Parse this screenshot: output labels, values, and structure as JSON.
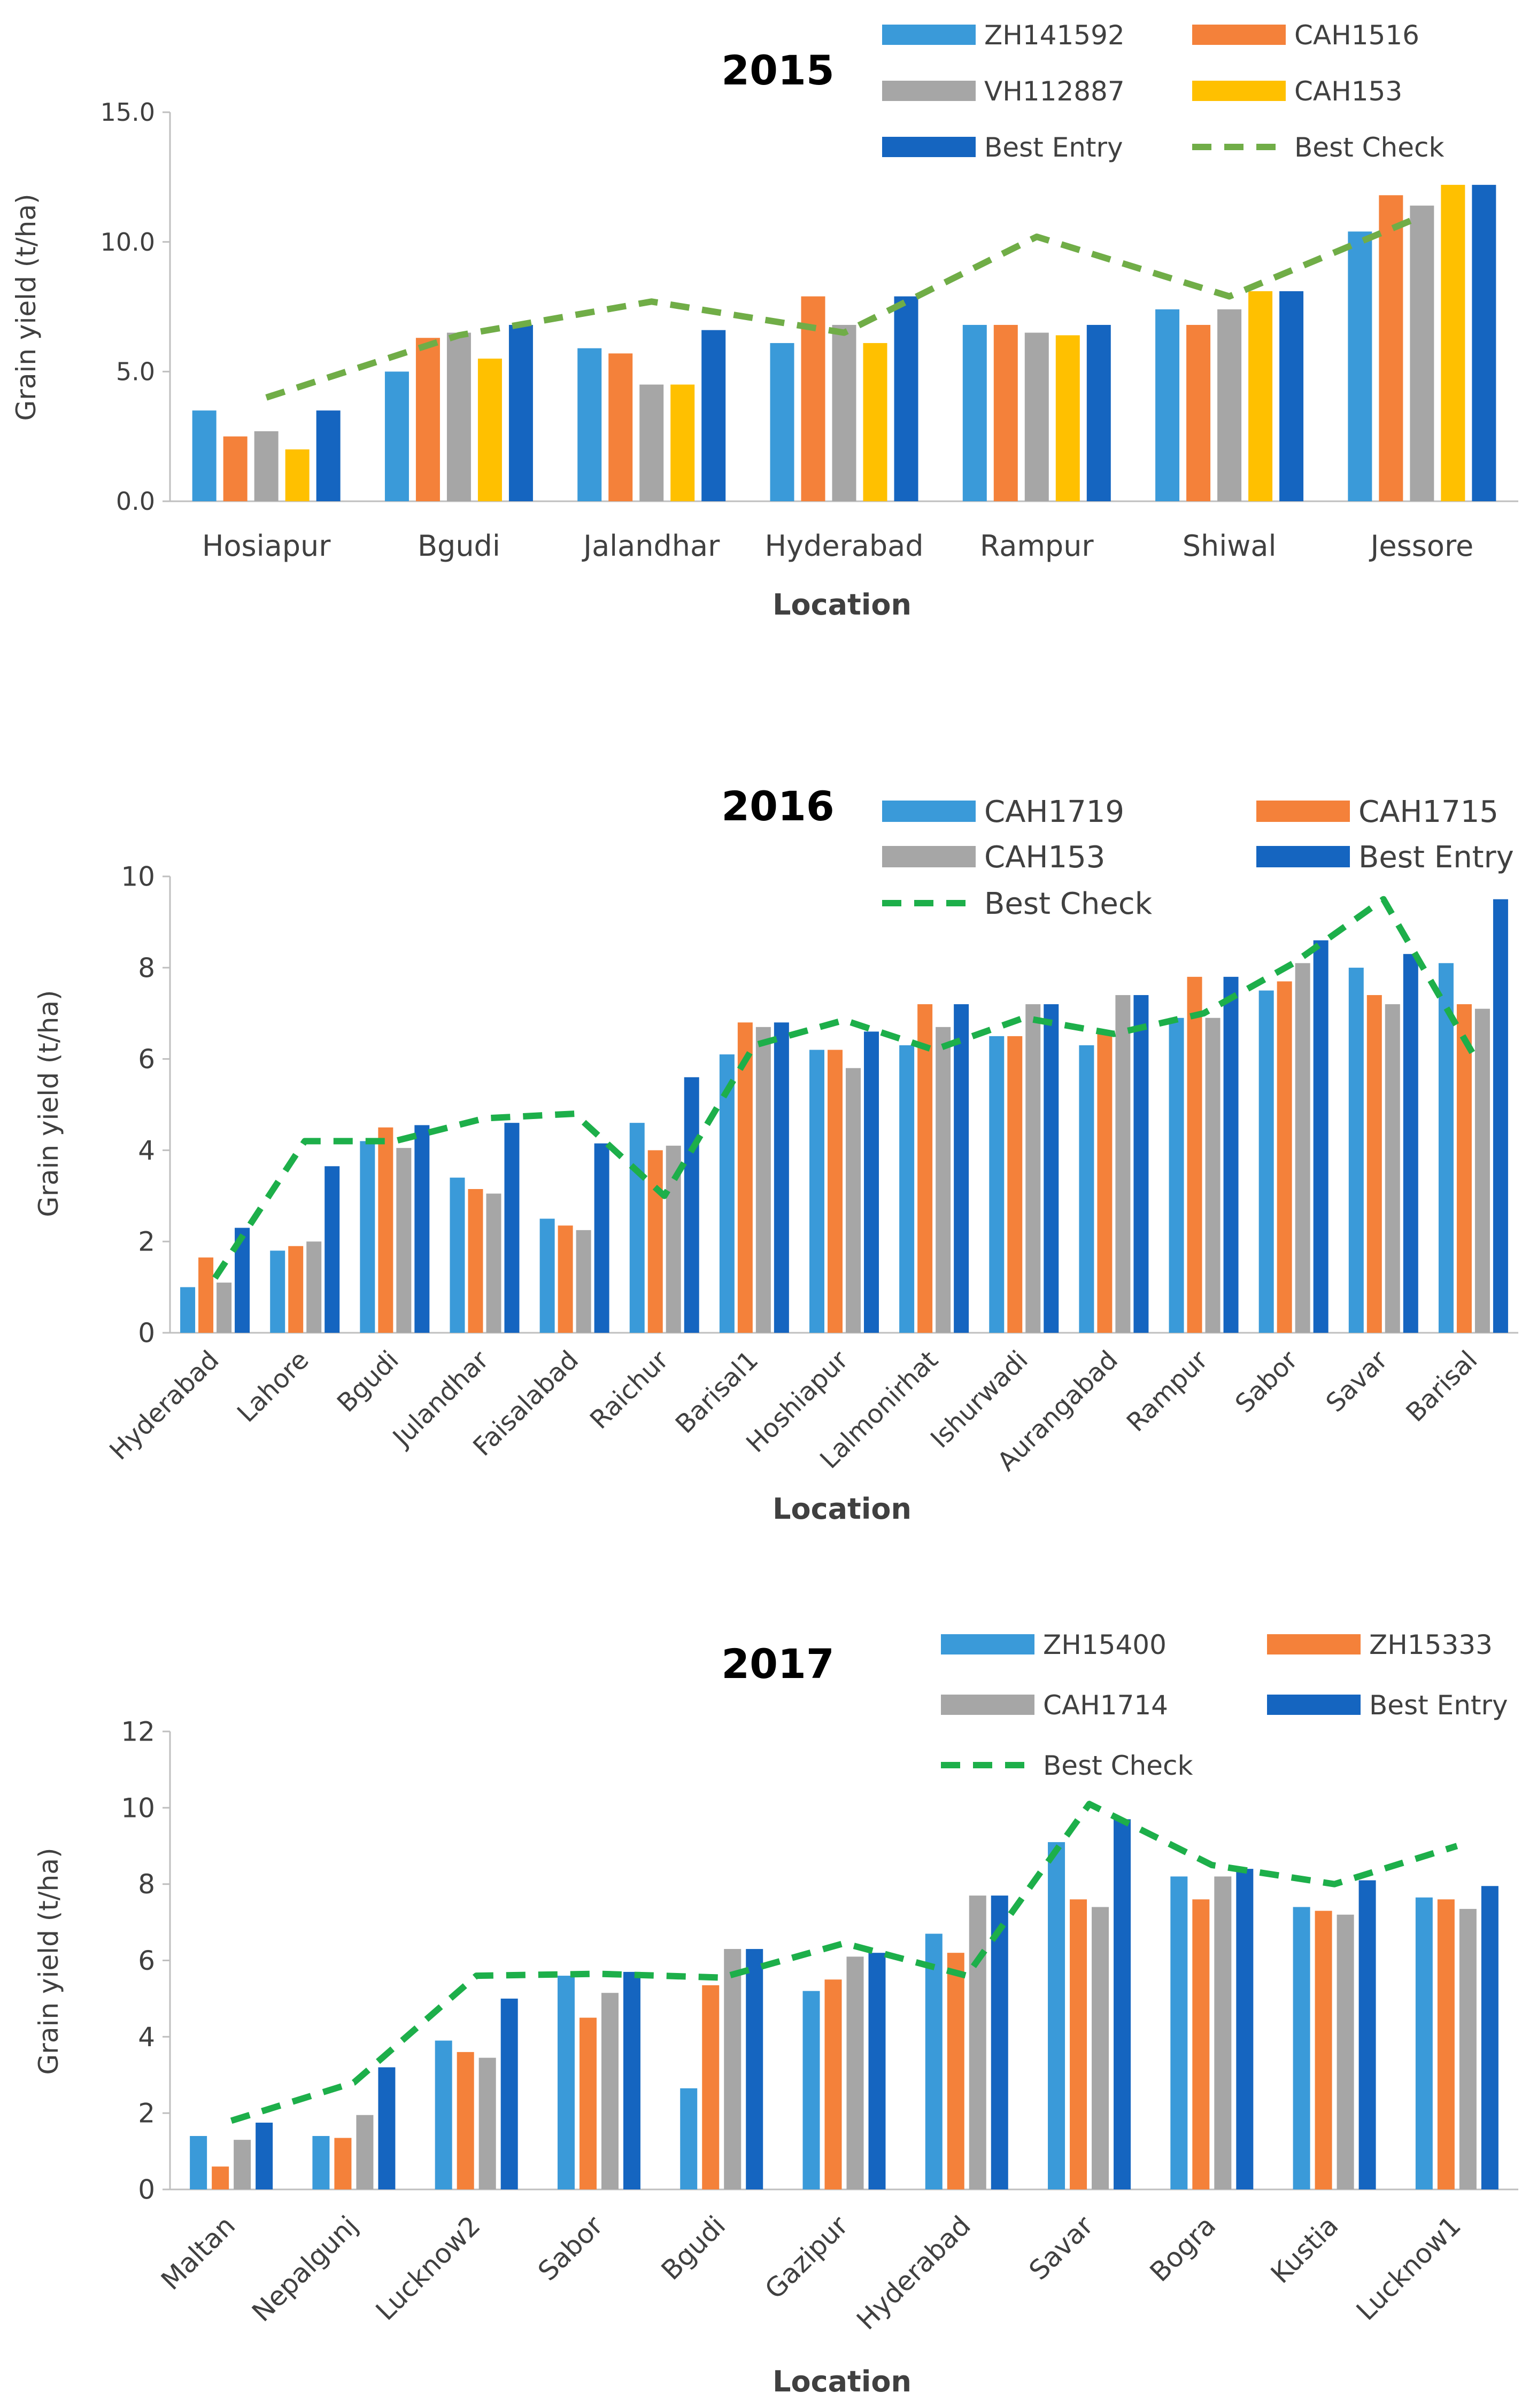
{
  "colors": {
    "ZH141592": "#3A9AD9",
    "CAH1516": "#F4813A",
    "VH112887": "#A6A6A6",
    "CAH153": "#FFC000",
    "CAH1719": "#3A9AD9",
    "CAH1715": "#F4813A",
    "ZH15400": "#3A9AD9",
    "ZH15333": "#F4813A",
    "CAH1714": "#A6A6A6",
    "best_entry": "#1565C0",
    "best_check_2015": "#70AD47",
    "best_check": "#1DAF4A",
    "axis": "#BFBFBF"
  },
  "chart_data": [
    {
      "type": "bar",
      "title": "2015",
      "xlabel": "Location",
      "ylabel": "Grain yield (t/ha)",
      "ylim": [
        0,
        15
      ],
      "yticks": [
        0,
        5,
        10,
        15
      ],
      "ytick_labels": [
        "0.0",
        "5.0",
        "10.0",
        "15.0"
      ],
      "categories": [
        "Hosiapur",
        "Bgudi",
        "Jalandhar",
        "Hyderabad",
        "Rampur",
        "Shiwal",
        "Jessore"
      ],
      "series": [
        {
          "name": "ZH141592",
          "color": "#3A9AD9",
          "values": [
            3.5,
            5.0,
            5.9,
            6.1,
            6.8,
            7.4,
            10.4
          ]
        },
        {
          "name": "CAH1516",
          "color": "#F4813A",
          "values": [
            2.5,
            6.3,
            5.7,
            7.9,
            6.8,
            6.8,
            11.8
          ]
        },
        {
          "name": "VH112887",
          "color": "#A6A6A6",
          "values": [
            2.7,
            6.5,
            4.5,
            6.8,
            6.5,
            7.4,
            11.4
          ]
        },
        {
          "name": "CAH153",
          "color": "#FFC000",
          "values": [
            2.0,
            5.5,
            4.5,
            6.1,
            6.4,
            8.1,
            12.2
          ]
        },
        {
          "name": "Best Entry",
          "color": "#1565C0",
          "values": [
            3.5,
            6.8,
            6.6,
            7.9,
            6.8,
            8.1,
            12.2
          ]
        }
      ],
      "line": {
        "name": "Best Check",
        "color": "#70AD47",
        "values": [
          4.0,
          6.4,
          7.7,
          6.5,
          10.2,
          7.9,
          11.0
        ]
      },
      "legend_entries": [
        "ZH141592",
        "CAH1516",
        "VH112887",
        "CAH153",
        "Best Entry",
        "Best Check"
      ]
    },
    {
      "type": "bar",
      "title": "2016",
      "xlabel": "Location",
      "ylabel": "Grain yield (t/ha)",
      "ylim": [
        0,
        10
      ],
      "yticks": [
        0,
        2,
        4,
        6,
        8,
        10
      ],
      "ytick_labels": [
        "0",
        "2",
        "4",
        "6",
        "8",
        "10"
      ],
      "categories": [
        "Hyderabad",
        "Lahore",
        "Bgudi",
        "Julandhar",
        "Faisalabad",
        "Raichur",
        "Barisal1",
        "Hoshiapur",
        "Lalmonirhat",
        "Ishurwadi",
        "Aurangabad",
        "Rampur",
        "Sabor",
        "Savar",
        "Barisal"
      ],
      "series": [
        {
          "name": "CAH1719",
          "color": "#3A9AD9",
          "values": [
            1.0,
            1.8,
            4.2,
            3.4,
            2.5,
            4.6,
            6.1,
            6.2,
            6.3,
            6.5,
            6.3,
            6.9,
            7.5,
            8.0,
            8.1
          ]
        },
        {
          "name": "CAH1715",
          "color": "#F4813A",
          "values": [
            1.65,
            1.9,
            4.5,
            3.15,
            2.35,
            4.0,
            6.8,
            6.2,
            7.2,
            6.5,
            6.6,
            7.8,
            7.7,
            7.4,
            7.2
          ]
        },
        {
          "name": "CAH153",
          "color": "#A6A6A6",
          "values": [
            1.1,
            2.0,
            4.05,
            3.05,
            2.25,
            4.1,
            6.7,
            5.8,
            6.7,
            7.2,
            7.4,
            6.9,
            8.1,
            7.2,
            7.1
          ]
        },
        {
          "name": "Best Entry",
          "color": "#1565C0",
          "values": [
            2.3,
            3.65,
            4.55,
            4.6,
            4.15,
            5.6,
            6.8,
            6.6,
            7.2,
            7.2,
            7.4,
            7.8,
            8.6,
            8.3,
            9.5
          ]
        }
      ],
      "line": {
        "name": "Best Check",
        "color": "#1DAF4A",
        "values": [
          1.2,
          4.2,
          4.2,
          4.7,
          4.8,
          3.0,
          6.3,
          6.85,
          6.2,
          6.9,
          6.55,
          7.0,
          8.1,
          9.5,
          6.1
        ]
      },
      "legend_entries": [
        "CAH1719",
        "CAH1715",
        "CAH153",
        "Best Entry",
        "Best Check"
      ]
    },
    {
      "type": "bar",
      "title": "2017",
      "xlabel": "Location",
      "ylabel": "Grain yield (t/ha)",
      "ylim": [
        0,
        12
      ],
      "yticks": [
        0,
        2,
        4,
        6,
        8,
        10,
        12
      ],
      "ytick_labels": [
        "0",
        "2",
        "4",
        "6",
        "8",
        "10",
        "12"
      ],
      "categories": [
        "Maltan",
        "Nepalgunj",
        "Lucknow2",
        "Sabor",
        "Bgudi",
        "Gazipur",
        "Hyderabad",
        "Savar",
        "Bogra",
        "Kustia",
        "Lucknow1"
      ],
      "series": [
        {
          "name": "ZH15400",
          "color": "#3A9AD9",
          "values": [
            1.4,
            1.4,
            3.9,
            5.6,
            2.65,
            5.2,
            6.7,
            9.1,
            8.2,
            7.4,
            7.65
          ]
        },
        {
          "name": "ZH15333",
          "color": "#F4813A",
          "values": [
            0.6,
            1.35,
            3.6,
            4.5,
            5.35,
            5.5,
            6.2,
            7.6,
            7.6,
            7.3,
            7.6
          ]
        },
        {
          "name": "CAH1714",
          "color": "#A6A6A6",
          "values": [
            1.3,
            1.95,
            3.45,
            5.15,
            6.3,
            6.1,
            7.7,
            7.4,
            8.2,
            7.2,
            7.35
          ]
        },
        {
          "name": "Best Entry",
          "color": "#1565C0",
          "values": [
            1.75,
            3.2,
            5.0,
            5.7,
            6.3,
            6.2,
            7.7,
            9.7,
            8.4,
            8.1,
            7.95
          ]
        }
      ],
      "line": {
        "name": "Best Check",
        "color": "#1DAF4A",
        "values": [
          1.8,
          2.8,
          5.6,
          5.65,
          5.55,
          6.45,
          5.6,
          10.1,
          8.5,
          8.0,
          9.0
        ]
      },
      "legend_entries": [
        "ZH15400",
        "ZH15333",
        "CAH1714",
        "Best Entry",
        "Best Check"
      ]
    }
  ]
}
